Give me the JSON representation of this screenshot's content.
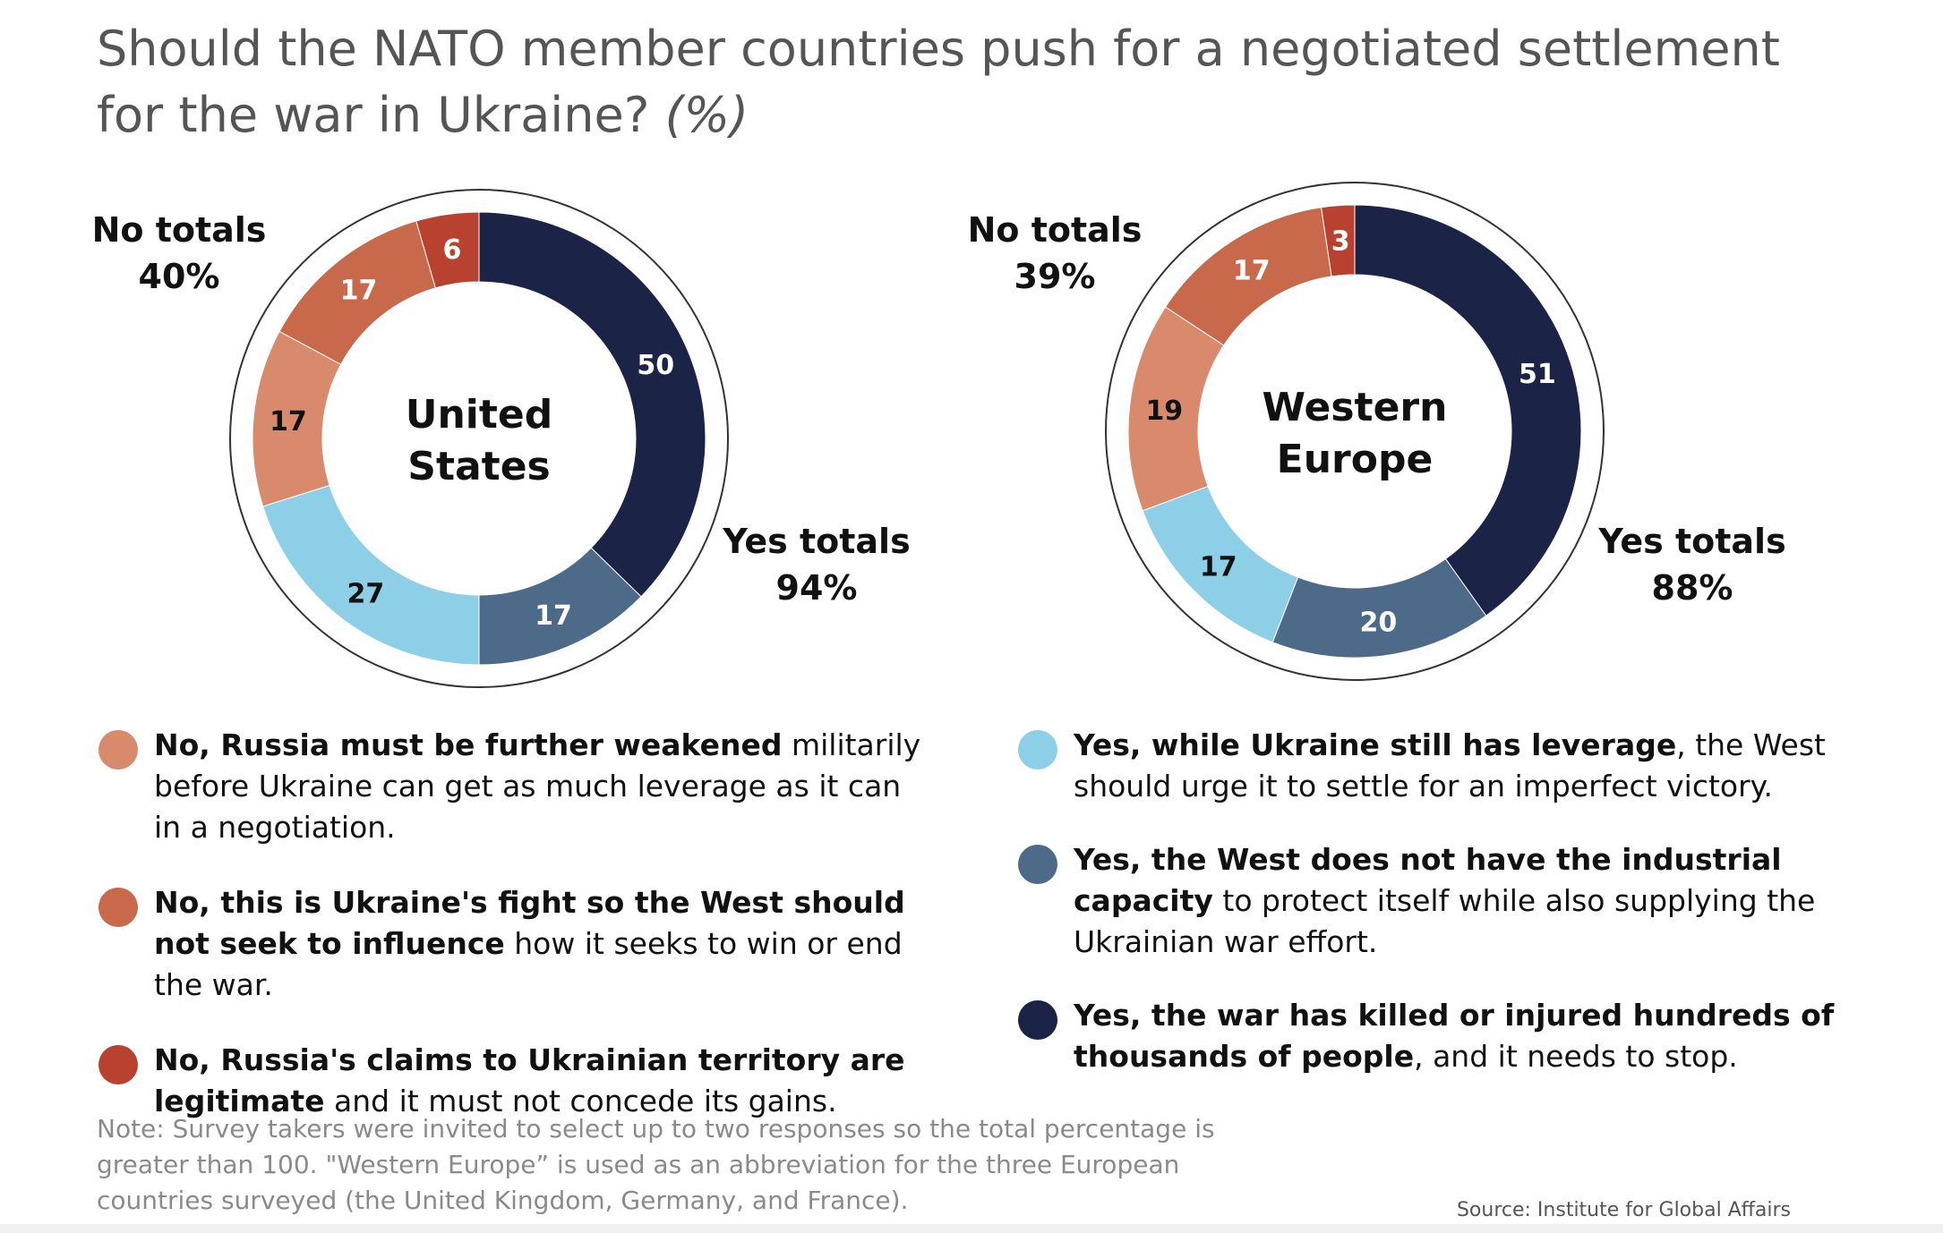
{
  "title": "Should the NATO member countries push for a negotiated settlement for the war in Ukraine?",
  "title_unit": "(%)",
  "colors": {
    "no_weakened": "#d98a6c",
    "no_ukraines_fight": "#c7694a",
    "no_claims_legit": "#b9412f",
    "yes_leverage": "#8ccfe7",
    "yes_capacity": "#4d6a88",
    "yes_killed": "#1b2346"
  },
  "chart_data": [
    {
      "type": "pie",
      "title": "United States",
      "no_totals_label": "No totals",
      "no_totals_value": "40%",
      "yes_totals_label": "Yes totals",
      "yes_totals_value": "94%",
      "slices": [
        {
          "key": "yes_killed",
          "value": 50,
          "label": "50"
        },
        {
          "key": "yes_capacity",
          "value": 17,
          "label": "17"
        },
        {
          "key": "yes_leverage",
          "value": 27,
          "label": "27"
        },
        {
          "key": "no_weakened",
          "value": 17,
          "label": "17"
        },
        {
          "key": "no_ukraines_fight",
          "value": 17,
          "label": "17"
        },
        {
          "key": "no_claims_legit",
          "value": 6,
          "label": "6"
        }
      ]
    },
    {
      "type": "pie",
      "title": "Western Europe",
      "no_totals_label": "No totals",
      "no_totals_value": "39%",
      "yes_totals_label": "Yes totals",
      "yes_totals_value": "88%",
      "slices": [
        {
          "key": "yes_killed",
          "value": 51,
          "label": "51"
        },
        {
          "key": "yes_capacity",
          "value": 20,
          "label": "20"
        },
        {
          "key": "yes_leverage",
          "value": 17,
          "label": "17"
        },
        {
          "key": "no_weakened",
          "value": 19,
          "label": "19"
        },
        {
          "key": "no_ukraines_fight",
          "value": 17,
          "label": "17"
        },
        {
          "key": "no_claims_legit",
          "value": 3,
          "label": "3"
        }
      ]
    }
  ],
  "legend": {
    "no_weakened": {
      "bold": "No, Russia must be further weakened",
      "rest": " militarily before Ukraine can get as much leverage as it can in a negotiation."
    },
    "no_ukraines_fight": {
      "bold": "No, this is Ukraine's fight so the West should not seek to influence",
      "rest": " how it seeks to win or end the war."
    },
    "no_claims_legit": {
      "bold": "No, Russia's claims to Ukrainian territory are legitimate",
      "rest": " and it must not concede its gains."
    },
    "yes_leverage": {
      "bold": "Yes, while Ukraine still has leverage",
      "rest": ", the West should urge it to settle for an imperfect victory."
    },
    "yes_capacity": {
      "bold": "Yes, the West does not have the industrial capacity",
      "rest": " to protect itself while also supplying the Ukrainian war effort."
    },
    "yes_killed": {
      "bold": "Yes, the war has killed or injured hundreds of thousands of people",
      "rest": ", and it needs to stop."
    }
  },
  "note": "Note: Survey takers were invited to select up to two responses so the total percentage is greater than 100. \"Western Europe” is used as an abbreviation for the three European countries surveyed (the United Kingdom, Germany, and France).",
  "source": "Source: Institute for Global Affairs"
}
